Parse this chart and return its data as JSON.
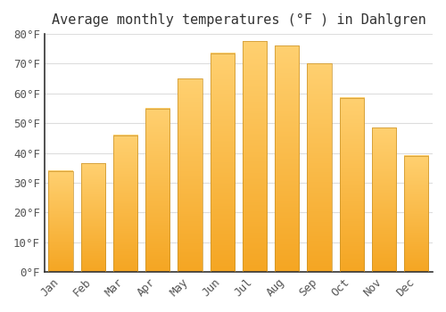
{
  "title": "Average monthly temperatures (°F ) in Dahlgren",
  "months": [
    "Jan",
    "Feb",
    "Mar",
    "Apr",
    "May",
    "Jun",
    "Jul",
    "Aug",
    "Sep",
    "Oct",
    "Nov",
    "Dec"
  ],
  "values": [
    34,
    36.5,
    46,
    55,
    65,
    73.5,
    77.5,
    76,
    70,
    58.5,
    48.5,
    39
  ],
  "bar_color_bottom": "#F5A623",
  "bar_color_top": "#FFD070",
  "bar_edge_color": "#C8922A",
  "ylim": [
    0,
    80
  ],
  "yticks": [
    0,
    10,
    20,
    30,
    40,
    50,
    60,
    70,
    80
  ],
  "ytick_labels": [
    "0°F",
    "10°F",
    "20°F",
    "30°F",
    "40°F",
    "50°F",
    "60°F",
    "70°F",
    "80°F"
  ],
  "background_color": "#ffffff",
  "grid_color": "#dddddd",
  "title_fontsize": 11,
  "tick_fontsize": 9,
  "font_family": "monospace",
  "bar_width": 0.75,
  "left_spine_color": "#333333"
}
